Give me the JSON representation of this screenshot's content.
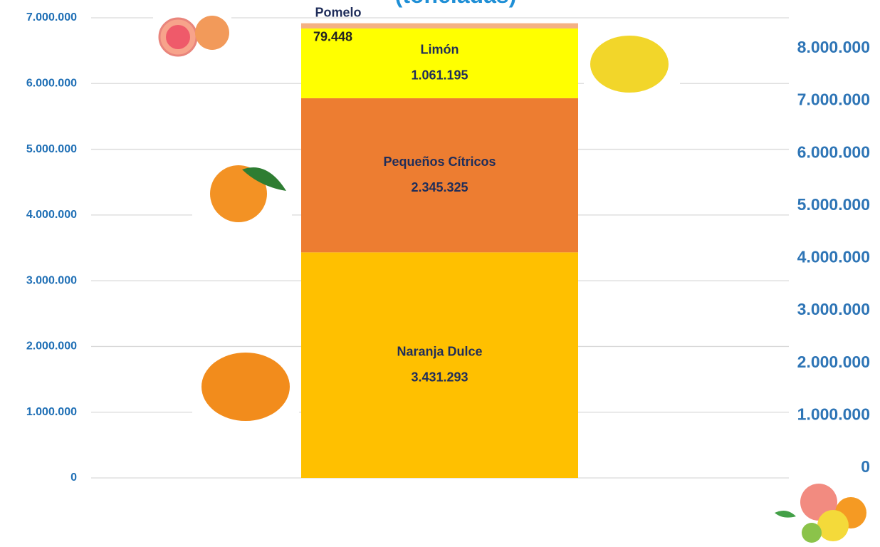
{
  "chart_data": {
    "type": "stacked-bar",
    "title": "(toneladas)",
    "categories": [
      null
    ],
    "series": [
      {
        "name": "Naranja Dulce",
        "color": "#FFC000",
        "values": [
          3431293
        ],
        "value_labels": [
          "3.431.293"
        ]
      },
      {
        "name": "Pequeños Cítricos",
        "color": "#ED7D31",
        "values": [
          2345325
        ],
        "value_labels": [
          "2.345.325"
        ]
      },
      {
        "name": "Limón",
        "color": "#FFFF00",
        "values": [
          1061195
        ],
        "value_labels": [
          "1.061.195"
        ]
      },
      {
        "name": "Pomelo",
        "color": "#F4B183",
        "values": [
          79448
        ],
        "value_labels": [
          "79.448"
        ]
      }
    ],
    "ylim": [
      0,
      7000000
    ],
    "yticks": [
      {
        "value": 0,
        "label": "0"
      },
      {
        "value": 1000000,
        "label": "1.000.000"
      },
      {
        "value": 2000000,
        "label": "2.000.000"
      },
      {
        "value": 3000000,
        "label": "3.000.000"
      },
      {
        "value": 4000000,
        "label": "4.000.000"
      },
      {
        "value": 5000000,
        "label": "5.000.000"
      },
      {
        "value": 6000000,
        "label": "6.000.000"
      },
      {
        "value": 7000000,
        "label": "7.000.000"
      }
    ],
    "y2lim": [
      0,
      8000000
    ],
    "y2ticks": [
      {
        "value": 0,
        "label": "0"
      },
      {
        "value": 1000000,
        "label": "1.000.000"
      },
      {
        "value": 2000000,
        "label": "2.000.000"
      },
      {
        "value": 3000000,
        "label": "3.000.000"
      },
      {
        "value": 4000000,
        "label": "4.000.000"
      },
      {
        "value": 5000000,
        "label": "5.000.000"
      },
      {
        "value": 6000000,
        "label": "6.000.000"
      },
      {
        "value": 7000000,
        "label": "7.000.000"
      },
      {
        "value": 8000000,
        "label": "8.000.000"
      }
    ],
    "grid": true
  }
}
